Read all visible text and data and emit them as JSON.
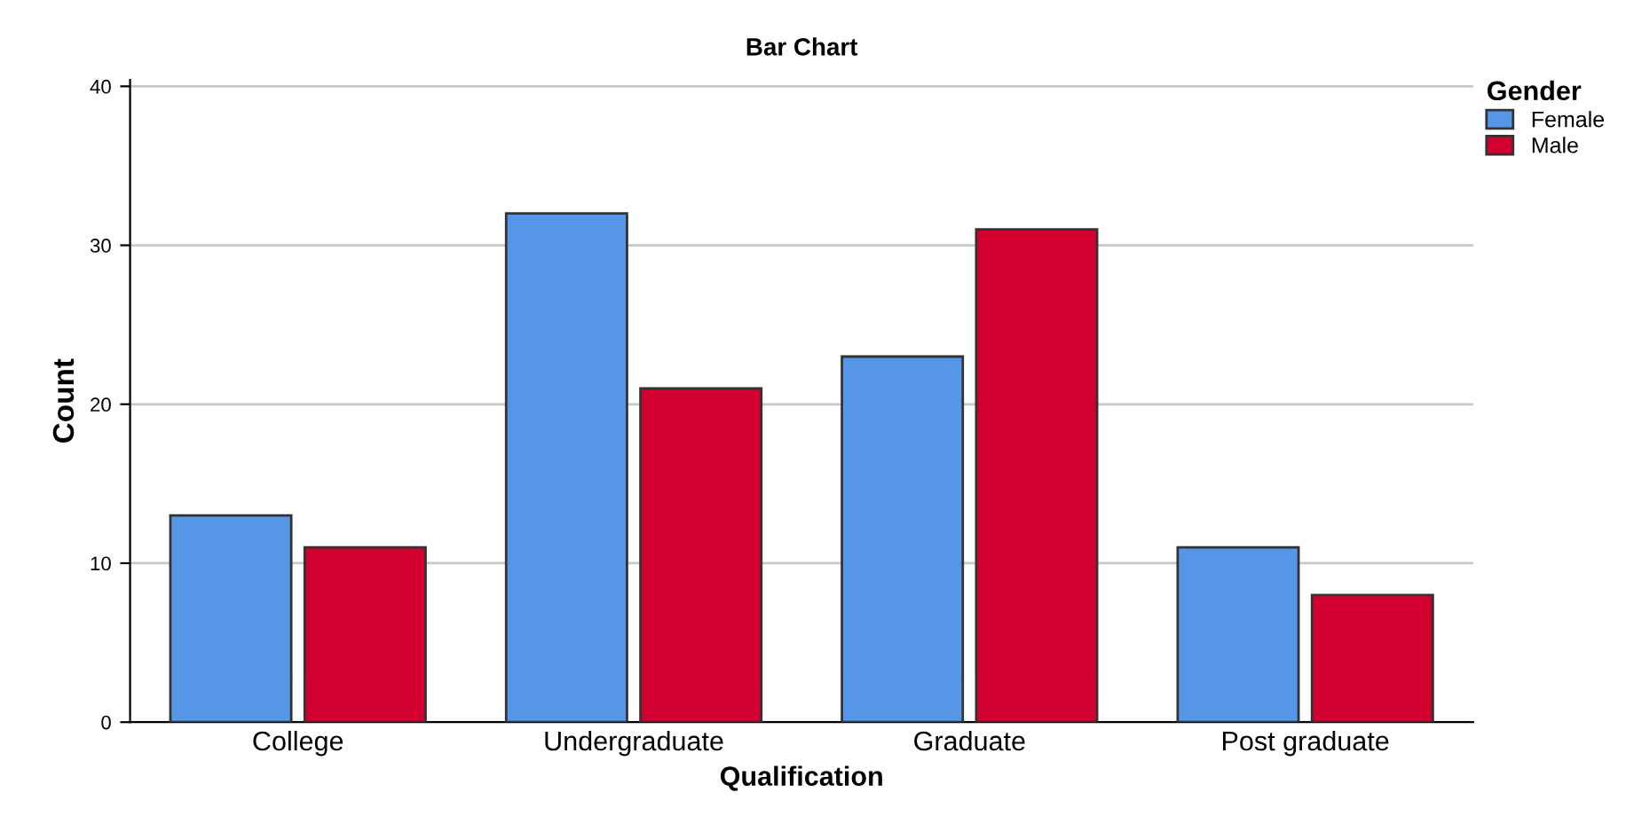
{
  "chart_data": {
    "type": "bar",
    "title": "Bar Chart",
    "xlabel": "Qualification",
    "ylabel": "Count",
    "legend_title": "Gender",
    "categories": [
      "College",
      "Undergraduate",
      "Graduate",
      "Post graduate"
    ],
    "series": [
      {
        "name": "Female",
        "color": "#5596e6",
        "values": [
          13,
          32,
          23,
          11
        ]
      },
      {
        "name": "Male",
        "color": "#d2002f",
        "values": [
          11,
          21,
          31,
          8
        ]
      }
    ],
    "ylim": [
      0,
      40.4
    ],
    "yticks": [
      0,
      10,
      20,
      30,
      40
    ],
    "grid": "y",
    "legend": "top right"
  }
}
